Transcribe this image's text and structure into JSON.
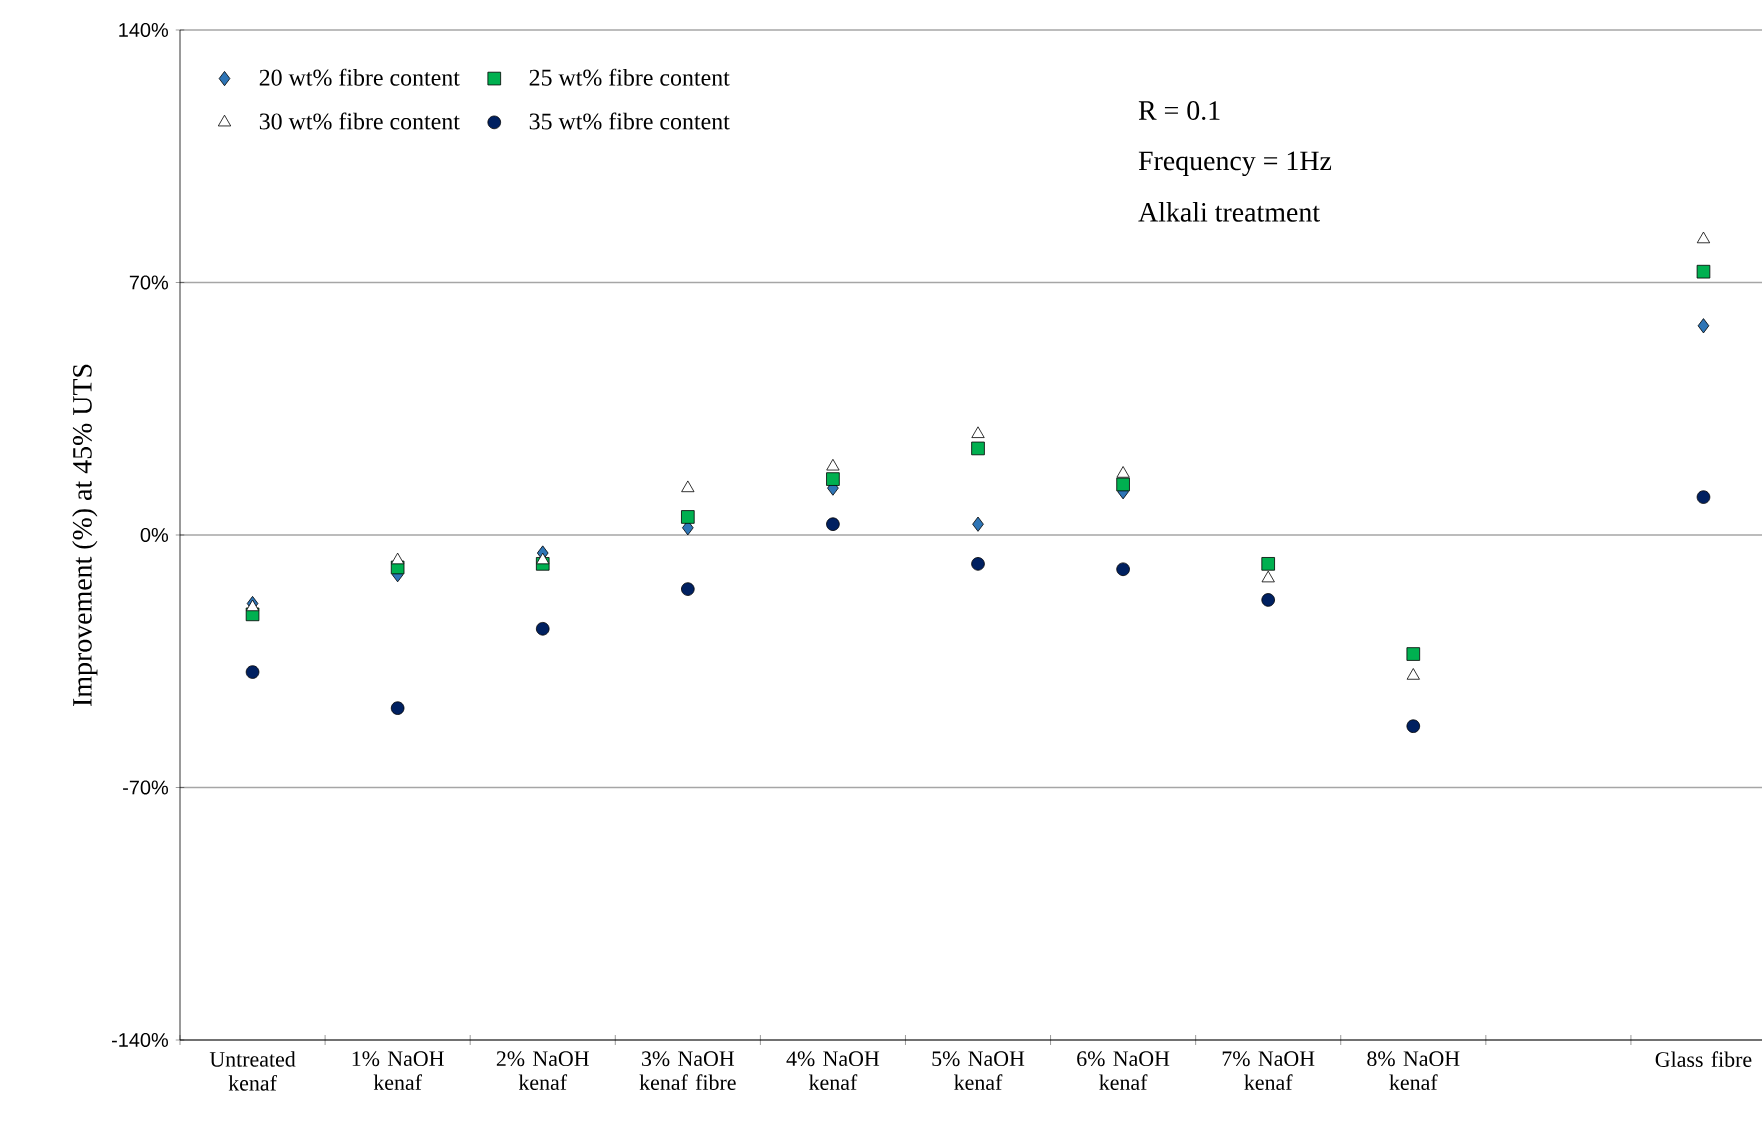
{
  "chart_data": {
    "type": "scatter",
    "ylabel": "Improvement (%) at 45% UTS",
    "categories": [
      "Untreated kenaf",
      "1% NaOH kenaf",
      "2% NaOH kenaf",
      "3% NaOH kenaf fibre",
      "4% NaOH kenaf",
      "5% NaOH kenaf",
      "6% NaOH kenaf",
      "7% NaOH kenaf",
      "8% NaOH kenaf",
      null,
      "Glass fibre"
    ],
    "series": [
      {
        "name": "20 wt% fibre content",
        "color": "#2e75b6",
        "marker": "diamond",
        "values": [
          -19,
          -11,
          -5,
          2,
          13,
          3,
          12,
          null,
          null,
          null,
          58
        ]
      },
      {
        "name": "25 wt% fibre content",
        "color": "#00b050",
        "marker": "square",
        "values": [
          -22,
          -9,
          -8,
          5,
          15.5,
          24,
          14,
          -8,
          -33,
          null,
          73
        ]
      },
      {
        "name": "30 wt% fibre content",
        "color": "#ffffff",
        "marker": "triangle",
        "values": [
          -20,
          -7,
          -7,
          13,
          19,
          28,
          17,
          -12,
          -39,
          null,
          82
        ]
      },
      {
        "name": "35 wt% fibre content",
        "color": "#002060",
        "marker": "circle",
        "values": [
          -38,
          -48,
          -26,
          -15,
          3,
          -8,
          -9.5,
          -18,
          -53,
          null,
          10.5
        ]
      }
    ],
    "ylim": [
      -140,
      140
    ],
    "yticks": [
      {
        "value": -140,
        "label": "-140%"
      },
      {
        "value": -70,
        "label": "-70%"
      },
      {
        "value": 0,
        "label": "0%"
      },
      {
        "value": 70,
        "label": "70%"
      },
      {
        "value": 140,
        "label": "140%"
      }
    ],
    "grid": "y",
    "legend": "top left",
    "annotations": [
      "R = 0.1",
      "Frequency = 1Hz",
      "Alkali treatment"
    ]
  }
}
